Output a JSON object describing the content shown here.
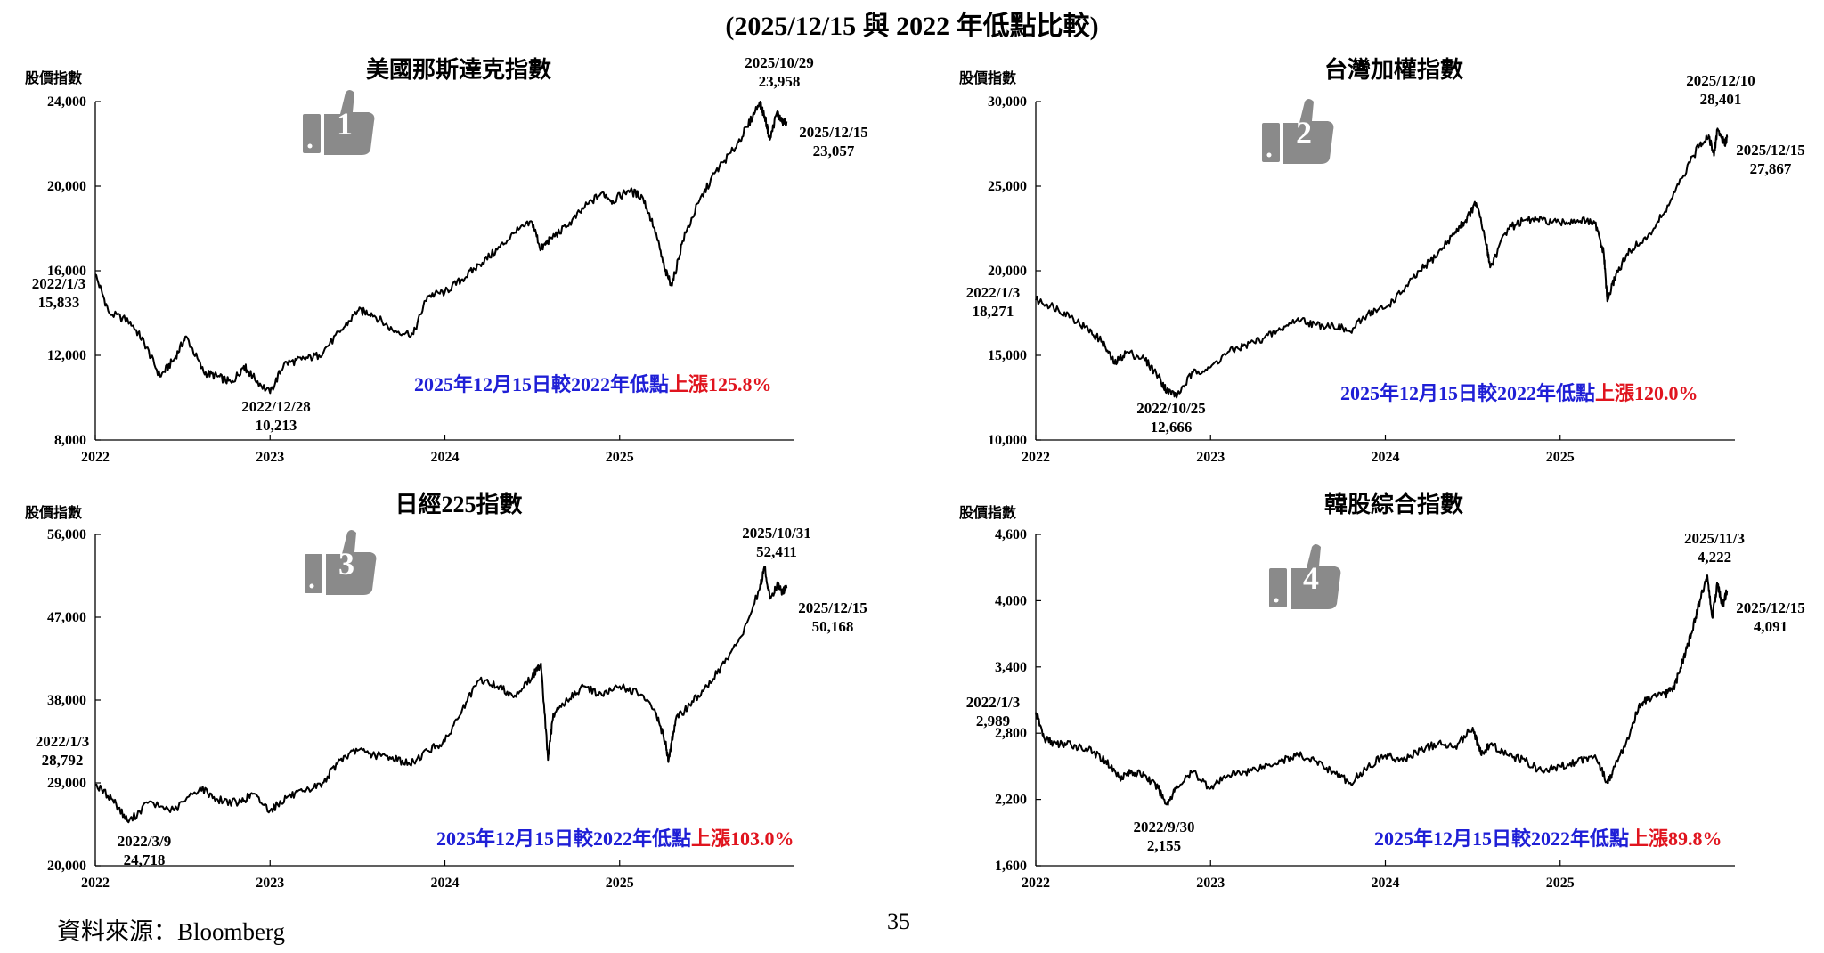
{
  "page": {
    "title": "(2025/12/15 與 2022 年低點比較)",
    "source": "資料來源：Bloomberg",
    "page_number": "35",
    "colors": {
      "line": "#000000",
      "note_blue": "#1f1fd6",
      "note_red": "#e0141e",
      "badge": "#8a8a8a"
    }
  },
  "charts": [
    {
      "title": "美國那斯達克指數",
      "ylabel": "股價指數",
      "badge_number": "1",
      "badge_icon": "thumbs-up-icon",
      "note_prefix": "2025年12月15日較2022年低點",
      "note_change": "上漲125.8%",
      "start": {
        "date": "2022/1/3",
        "value": "15,833"
      },
      "low": {
        "date": "2022/12/28",
        "value": "10,213"
      },
      "peak": {
        "date": "2025/10/29",
        "value": "23,958"
      },
      "end": {
        "date": "2025/12/15",
        "value": "23,057"
      },
      "yticks": [
        "8,000",
        "12,000",
        "16,000",
        "20,000",
        "24,000"
      ],
      "xticks": [
        "2022",
        "2023",
        "2024",
        "2025"
      ]
    },
    {
      "title": "台灣加權指數",
      "ylabel": "股價指數",
      "badge_number": "2",
      "badge_icon": "thumbs-up-icon",
      "note_prefix": "2025年12月15日較2022年低點",
      "note_change": "上漲120.0%",
      "start": {
        "date": "2022/1/3",
        "value": "18,271"
      },
      "low": {
        "date": "2022/10/25",
        "value": "12,666"
      },
      "peak": {
        "date": "2025/12/10",
        "value": "28,401"
      },
      "end": {
        "date": "2025/12/15",
        "value": "27,867"
      },
      "yticks": [
        "10,000",
        "15,000",
        "20,000",
        "25,000",
        "30,000"
      ],
      "xticks": [
        "2022",
        "2023",
        "2024",
        "2025"
      ]
    },
    {
      "title": "日經225指數",
      "ylabel": "股價指數",
      "badge_number": "3",
      "badge_icon": "thumbs-up-icon",
      "note_prefix": "2025年12月15日較2022年低點",
      "note_change": "上漲103.0%",
      "start": {
        "date": "2022/1/3",
        "value": "28,792"
      },
      "low": {
        "date": "2022/3/9",
        "value": "24,718"
      },
      "peak": {
        "date": "2025/10/31",
        "value": "52,411"
      },
      "end": {
        "date": "2025/12/15",
        "value": "50,168"
      },
      "yticks": [
        "20,000",
        "29,000",
        "38,000",
        "47,000",
        "56,000"
      ],
      "xticks": [
        "2022",
        "2023",
        "2024",
        "2025"
      ]
    },
    {
      "title": "韓股綜合指數",
      "ylabel": "股價指數",
      "badge_number": "4",
      "badge_icon": "thumbs-up-icon",
      "note_prefix": "2025年12月15日較2022年低點",
      "note_change": "上漲89.8%",
      "start": {
        "date": "2022/1/3",
        "value": "2,989"
      },
      "low": {
        "date": "2022/9/30",
        "value": "2,155"
      },
      "peak": {
        "date": "2025/11/3",
        "value": "4,222"
      },
      "end": {
        "date": "2025/12/15",
        "value": "4,091"
      },
      "yticks": [
        "1,600",
        "2,200",
        "2,800",
        "3,400",
        "4,000",
        "4,600"
      ],
      "xticks": [
        "2022",
        "2023",
        "2024",
        "2025"
      ]
    }
  ],
  "chart_data": [
    {
      "type": "line",
      "title": "美國那斯達克指數",
      "ylabel": "股價指數",
      "ylim": [
        8000,
        24000
      ],
      "xlim": [
        2022.0,
        2026.0
      ],
      "grid": false,
      "series": [
        {
          "x": [
            2022.0,
            2022.08,
            2022.2,
            2022.28,
            2022.37,
            2022.45,
            2022.52,
            2022.62,
            2022.7,
            2022.78,
            2022.85,
            2022.9,
            2023.0,
            2023.08,
            2023.18,
            2023.28,
            2023.4,
            2023.5,
            2023.58,
            2023.7,
            2023.82,
            2023.9,
            2024.0,
            2024.1,
            2024.2,
            2024.3,
            2024.4,
            2024.5,
            2024.55,
            2024.6,
            2024.7,
            2024.8,
            2024.9,
            2024.96,
            2025.05,
            2025.13,
            2025.2,
            2025.26,
            2025.3,
            2025.36,
            2025.45,
            2025.55,
            2025.65,
            2025.73,
            2025.8,
            2025.83,
            2025.86,
            2025.9,
            2025.93,
            2025.955
          ],
          "values": [
            15833,
            14000,
            13600,
            12600,
            11000,
            11800,
            12900,
            11200,
            11000,
            10700,
            11500,
            11000,
            10213,
            11600,
            11800,
            12000,
            13100,
            14100,
            14000,
            13200,
            13000,
            14800,
            15000,
            15600,
            16300,
            17000,
            17800,
            18300,
            17000,
            17500,
            18100,
            19000,
            19700,
            19300,
            19800,
            19500,
            18000,
            16000,
            15300,
            17400,
            19200,
            20700,
            21700,
            22800,
            23958,
            23300,
            22200,
            23500,
            23000,
            23057
          ]
        }
      ],
      "annotations": [
        {
          "date": "2022/1/3",
          "value": 15833
        },
        {
          "date": "2022/12/28",
          "value": 10213
        },
        {
          "date": "2025/10/29",
          "value": 23958
        },
        {
          "date": "2025/12/15",
          "value": 23057
        }
      ]
    },
    {
      "type": "line",
      "title": "台灣加權指數",
      "ylabel": "股價指數",
      "ylim": [
        10000,
        30000
      ],
      "xlim": [
        2022.0,
        2026.0
      ],
      "grid": false,
      "series": [
        {
          "x": [
            2022.0,
            2022.1,
            2022.2,
            2022.3,
            2022.38,
            2022.45,
            2022.52,
            2022.62,
            2022.7,
            2022.75,
            2022.81,
            2022.9,
            2023.0,
            2023.1,
            2023.2,
            2023.3,
            2023.4,
            2023.5,
            2023.6,
            2023.7,
            2023.8,
            2023.9,
            2024.0,
            2024.1,
            2024.2,
            2024.3,
            2024.4,
            2024.46,
            2024.52,
            2024.58,
            2024.6,
            2024.7,
            2024.8,
            2024.9,
            2025.0,
            2025.1,
            2025.2,
            2025.25,
            2025.27,
            2025.32,
            2025.4,
            2025.5,
            2025.6,
            2025.7,
            2025.8,
            2025.85,
            2025.88,
            2025.9,
            2025.94,
            2025.955
          ],
          "values": [
            18271,
            17900,
            17300,
            16500,
            15800,
            14500,
            15200,
            14800,
            13800,
            12900,
            12666,
            14000,
            14300,
            15200,
            15600,
            16000,
            16500,
            17200,
            16800,
            16800,
            16400,
            17500,
            17800,
            18800,
            20000,
            21000,
            22300,
            23000,
            24000,
            21500,
            20200,
            22500,
            23000,
            23000,
            22800,
            23000,
            22800,
            21000,
            18200,
            19800,
            21200,
            22000,
            23500,
            25500,
            27500,
            28000,
            26800,
            28401,
            27500,
            27867
          ]
        }
      ],
      "annotations": [
        {
          "date": "2022/1/3",
          "value": 18271
        },
        {
          "date": "2022/10/25",
          "value": 12666
        },
        {
          "date": "2025/12/10",
          "value": 28401
        },
        {
          "date": "2025/12/15",
          "value": 27867
        }
      ]
    },
    {
      "type": "line",
      "title": "日經225指數",
      "ylabel": "股價指數",
      "ylim": [
        20000,
        56000
      ],
      "xlim": [
        2022.0,
        2026.0
      ],
      "grid": false,
      "series": [
        {
          "x": [
            2022.0,
            2022.1,
            2022.19,
            2022.3,
            2022.45,
            2022.6,
            2022.7,
            2022.82,
            2022.9,
            2023.0,
            2023.1,
            2023.2,
            2023.3,
            2023.4,
            2023.5,
            2023.6,
            2023.7,
            2023.8,
            2023.9,
            2024.0,
            2024.1,
            2024.2,
            2024.3,
            2024.4,
            2024.5,
            2024.55,
            2024.59,
            2024.62,
            2024.7,
            2024.8,
            2024.9,
            2025.0,
            2025.1,
            2025.2,
            2025.26,
            2025.28,
            2025.32,
            2025.4,
            2025.5,
            2025.6,
            2025.7,
            2025.8,
            2025.83,
            2025.86,
            2025.9,
            2025.93,
            2025.955
          ],
          "values": [
            28792,
            27200,
            24718,
            26800,
            26000,
            28500,
            27200,
            26800,
            27800,
            26000,
            27500,
            28000,
            29000,
            31500,
            32500,
            32000,
            31800,
            31000,
            32500,
            33500,
            37000,
            40200,
            39500,
            38500,
            40500,
            42000,
            31500,
            36500,
            38000,
            39500,
            38500,
            39500,
            38800,
            37000,
            33500,
            31500,
            35800,
            37500,
            39500,
            42000,
            45000,
            50000,
            52411,
            49000,
            50500,
            49800,
            50168
          ]
        }
      ],
      "annotations": [
        {
          "date": "2022/1/3",
          "value": 28792
        },
        {
          "date": "2022/3/9",
          "value": 24718
        },
        {
          "date": "2025/10/31",
          "value": 52411
        },
        {
          "date": "2025/12/15",
          "value": 50168
        }
      ]
    },
    {
      "type": "line",
      "title": "韓股綜合指數",
      "ylabel": "股價指數",
      "ylim": [
        1600,
        4600
      ],
      "xlim": [
        2022.0,
        2026.0
      ],
      "grid": false,
      "series": [
        {
          "x": [
            2022.0,
            2022.05,
            2022.12,
            2022.2,
            2022.3,
            2022.4,
            2022.48,
            2022.55,
            2022.62,
            2022.7,
            2022.75,
            2022.8,
            2022.9,
            2023.0,
            2023.1,
            2023.2,
            2023.3,
            2023.4,
            2023.5,
            2023.6,
            2023.7,
            2023.8,
            2023.9,
            2024.0,
            2024.1,
            2024.2,
            2024.3,
            2024.4,
            2024.5,
            2024.55,
            2024.6,
            2024.7,
            2024.8,
            2024.9,
            2025.0,
            2025.1,
            2025.2,
            2025.27,
            2025.3,
            2025.4,
            2025.45,
            2025.5,
            2025.6,
            2025.65,
            2025.7,
            2025.75,
            2025.8,
            2025.84,
            2025.87,
            2025.9,
            2025.93,
            2025.955
          ],
          "values": [
            2989,
            2750,
            2700,
            2700,
            2650,
            2550,
            2400,
            2450,
            2420,
            2300,
            2155,
            2300,
            2450,
            2300,
            2420,
            2450,
            2500,
            2550,
            2600,
            2550,
            2450,
            2350,
            2500,
            2600,
            2550,
            2650,
            2700,
            2680,
            2850,
            2600,
            2700,
            2600,
            2550,
            2450,
            2500,
            2550,
            2600,
            2350,
            2450,
            2800,
            3050,
            3100,
            3150,
            3200,
            3450,
            3700,
            4000,
            4222,
            3850,
            4150,
            3950,
            4091
          ]
        }
      ],
      "annotations": [
        {
          "date": "2022/1/3",
          "value": 2989
        },
        {
          "date": "2022/9/30",
          "value": 2155
        },
        {
          "date": "2025/11/3",
          "value": 4222
        },
        {
          "date": "2025/12/15",
          "value": 4091
        }
      ]
    }
  ]
}
